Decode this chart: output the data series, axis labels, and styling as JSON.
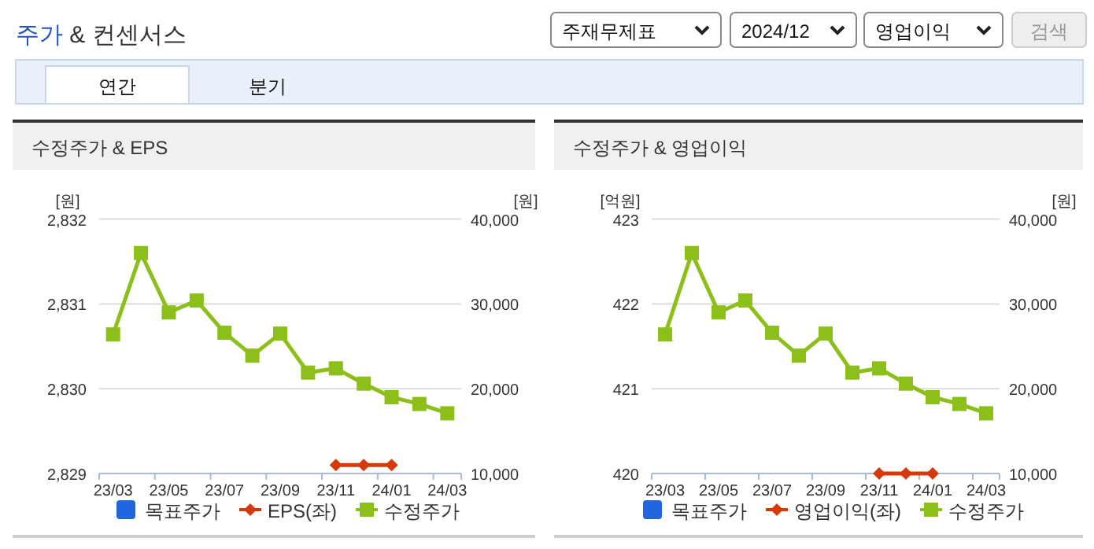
{
  "chart_data": [
    {
      "type": "other",
      "title": "주가 & 컨센서스",
      "annotations": [
        "주재무제표",
        "2024/12",
        "영업이익",
        "검색",
        "연간",
        "분기"
      ]
    },
    {
      "type": "line",
      "title": "수정주가 & EPS",
      "ylabel": "[원]",
      "y2label": "[원]",
      "categories": [
        "23/03",
        null,
        "23/05",
        null,
        "23/07",
        null,
        "23/09",
        null,
        "23/11",
        null,
        "24/01",
        null,
        "24/03"
      ],
      "series": [
        {
          "name": "목표주가",
          "type": "bar",
          "color": "#2266dd",
          "values": [
            null,
            null,
            null,
            null,
            null,
            null,
            null,
            null,
            null,
            null,
            null,
            null,
            null
          ]
        },
        {
          "name": "EPS(좌)",
          "color": "#d53a0a",
          "marker": "diamond",
          "values": [
            null,
            null,
            null,
            null,
            null,
            null,
            null,
            null,
            2829.1,
            2829.1,
            2829.1,
            null,
            null
          ]
        },
        {
          "name": "수정주가",
          "color": "#8cbf1a",
          "marker": "square",
          "axis": "y2",
          "values": [
            26400,
            36000,
            29000,
            30400,
            26600,
            23900,
            26500,
            21900,
            22400,
            20600,
            19000,
            18200,
            17100
          ]
        }
      ],
      "ylim": [
        2829,
        2832
      ],
      "yticks": [
        {
          "value": 2829,
          "label": "2,829"
        },
        {
          "value": 2830,
          "label": "2,830"
        },
        {
          "value": 2831,
          "label": "2,831"
        },
        {
          "value": 2832,
          "label": "2,832"
        }
      ],
      "y2lim": [
        10000,
        40000
      ],
      "y2ticks": [
        {
          "value": 10000,
          "label": "10,000"
        },
        {
          "value": 20000,
          "label": "20,000"
        },
        {
          "value": 30000,
          "label": "30,000"
        },
        {
          "value": 40000,
          "label": "40,000"
        }
      ],
      "grid": "y",
      "legend": "bottom"
    },
    {
      "type": "line",
      "title": "수정주가 & 영업이익",
      "ylabel": "[억원]",
      "y2label": "[원]",
      "categories": [
        "23/03",
        null,
        "23/05",
        null,
        "23/07",
        null,
        "23/09",
        null,
        "23/11",
        null,
        "24/01",
        null,
        "24/03"
      ],
      "series": [
        {
          "name": "목표주가",
          "type": "bar",
          "color": "#2266dd",
          "values": [
            null,
            null,
            null,
            null,
            null,
            null,
            null,
            null,
            null,
            null,
            null,
            null,
            null
          ]
        },
        {
          "name": "영업이익(좌)",
          "color": "#d53a0a",
          "marker": "diamond",
          "values": [
            null,
            null,
            null,
            null,
            null,
            null,
            null,
            null,
            420,
            420,
            420,
            null,
            null
          ]
        },
        {
          "name": "수정주가",
          "color": "#8cbf1a",
          "marker": "square",
          "axis": "y2",
          "values": [
            26400,
            36000,
            29000,
            30400,
            26600,
            23900,
            26500,
            21900,
            22400,
            20600,
            19000,
            18200,
            17100
          ]
        }
      ],
      "ylim": [
        420,
        423
      ],
      "yticks": [
        420,
        421,
        422,
        423
      ],
      "y2lim": [
        10000,
        40000
      ],
      "y2ticks": [
        {
          "value": 10000,
          "label": "10,000"
        },
        {
          "value": 20000,
          "label": "20,000"
        },
        {
          "value": 30000,
          "label": "30,000"
        },
        {
          "value": 40000,
          "label": "40,000"
        }
      ],
      "grid": "y",
      "legend": "bottom"
    }
  ]
}
